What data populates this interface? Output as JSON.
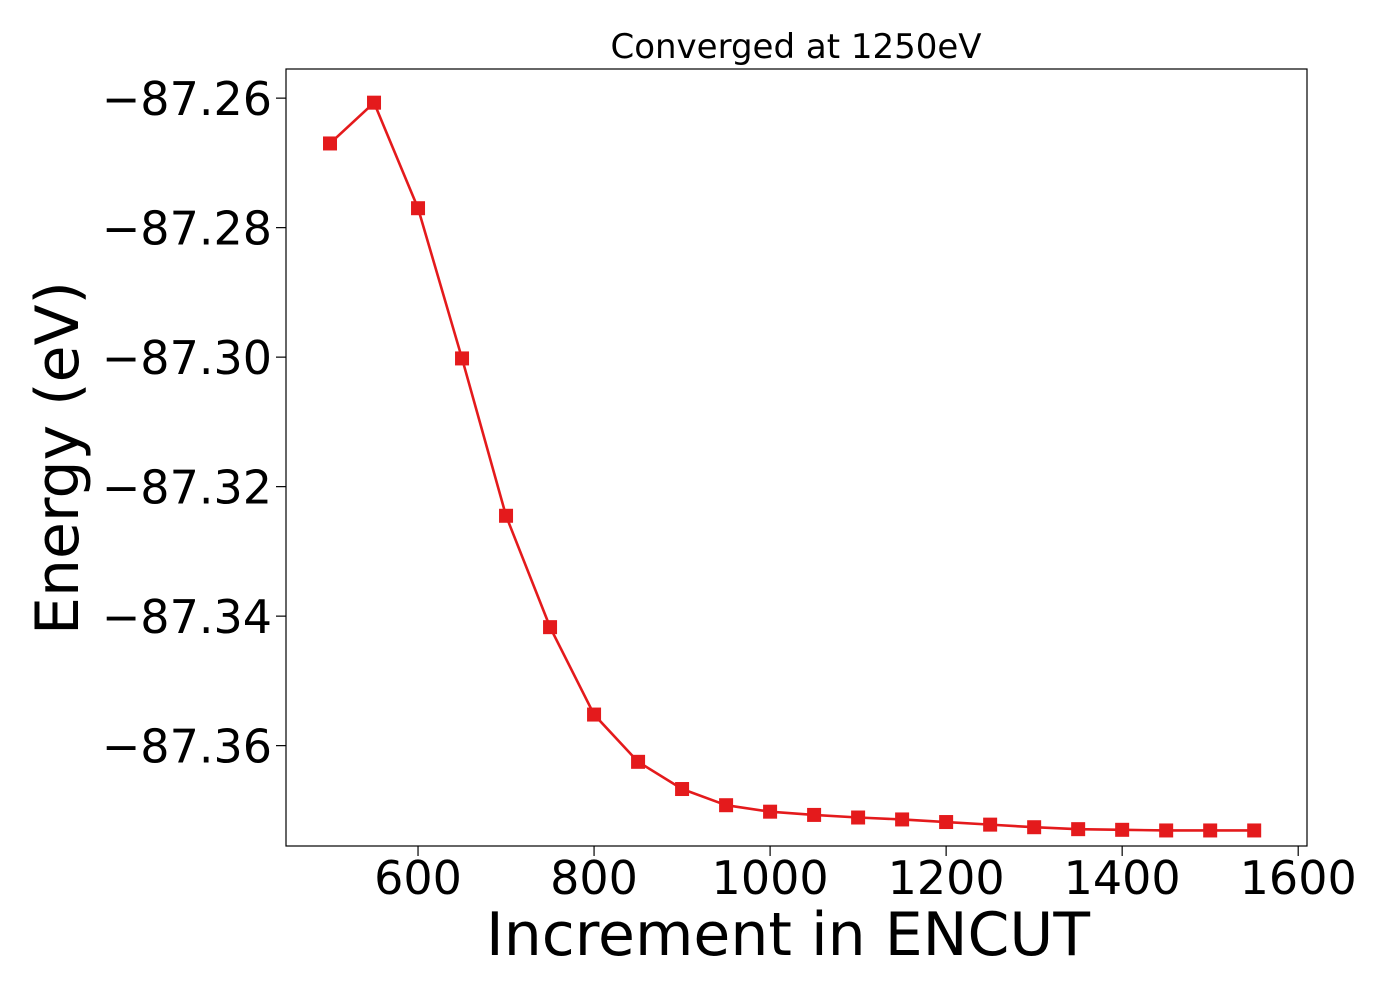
{
  "chart_data": {
    "type": "line",
    "title": "Converged at 1250eV",
    "xlabel": "Increment in ENCUT",
    "ylabel": "Energy (eV)",
    "xlim": [
      450,
      1610
    ],
    "ylim": [
      -87.3755,
      -87.2555
    ],
    "x_ticks": [
      600,
      800,
      1000,
      1200,
      1400,
      1600
    ],
    "x_tick_labels": [
      "600",
      "800",
      "1000",
      "1200",
      "1400",
      "1600"
    ],
    "y_ticks": [
      -87.26,
      -87.28,
      -87.3,
      -87.32,
      -87.34,
      -87.36
    ],
    "y_tick_labels": [
      "−87.26",
      "−87.28",
      "−87.30",
      "−87.32",
      "−87.34",
      "−87.36"
    ],
    "grid": false,
    "series": [
      {
        "color": "#e41a1c",
        "marker": "square",
        "x": [
          500,
          550,
          600,
          650,
          700,
          750,
          800,
          850,
          900,
          950,
          1000,
          1050,
          1100,
          1150,
          1200,
          1250,
          1300,
          1350,
          1400,
          1450,
          1500,
          1550
        ],
        "y": [
          -87.267,
          -87.2607,
          -87.277,
          -87.3002,
          -87.3245,
          -87.3417,
          -87.3552,
          -87.3625,
          -87.3667,
          -87.3692,
          -87.3702,
          -87.3707,
          -87.3711,
          -87.3714,
          -87.3718,
          -87.3722,
          -87.3726,
          -87.3729,
          -87.373,
          -87.3731,
          -87.3731,
          -87.3731
        ]
      }
    ]
  }
}
